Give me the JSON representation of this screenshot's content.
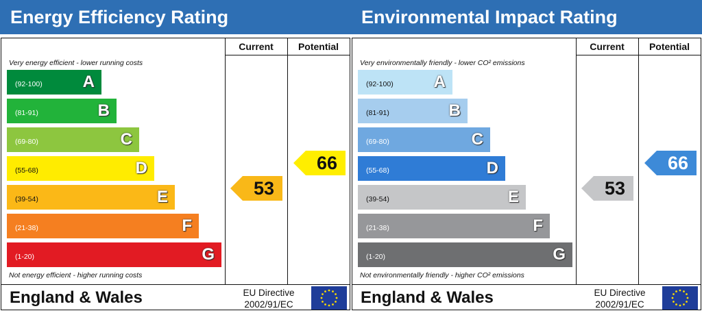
{
  "energy": {
    "title": "Energy Efficiency Rating",
    "col_current": "Current",
    "col_potential": "Potential",
    "top_caption": "Very energy efficient - lower running costs",
    "bottom_caption": "Not energy efficient - higher running costs",
    "bands": [
      {
        "range": "(92-100)",
        "letter": "A",
        "color": "#008a3c"
      },
      {
        "range": "(81-91)",
        "letter": "B",
        "color": "#22b33a"
      },
      {
        "range": "(69-80)",
        "letter": "C",
        "color": "#8dc63f"
      },
      {
        "range": "(55-68)",
        "letter": "D",
        "color": "#ffec00"
      },
      {
        "range": "(39-54)",
        "letter": "E",
        "color": "#fbb817"
      },
      {
        "range": "(21-38)",
        "letter": "F",
        "color": "#f57f20"
      },
      {
        "range": "(1-20)",
        "letter": "G",
        "color": "#e21b23"
      }
    ],
    "current": {
      "value": "53",
      "band": "E",
      "color": "#f9b818"
    },
    "potential": {
      "value": "66",
      "band": "D",
      "color": "#ffee00"
    },
    "country": "England & Wales",
    "directive_line1": "EU Directive",
    "directive_line2": "2002/91/EC"
  },
  "environment": {
    "title": "Environmental Impact Rating",
    "col_current": "Current",
    "col_potential": "Potential",
    "top_caption": "Very environmentally friendly - lower CO² emissions",
    "bottom_caption": "Not environmentally friendly - higher CO² emissions",
    "bands": [
      {
        "range": "(92-100)",
        "letter": "A",
        "color": "#bde3f6"
      },
      {
        "range": "(81-91)",
        "letter": "B",
        "color": "#a6cdee"
      },
      {
        "range": "(69-80)",
        "letter": "C",
        "color": "#6fa8e0"
      },
      {
        "range": "(55-68)",
        "letter": "D",
        "color": "#2f7cd6"
      },
      {
        "range": "(39-54)",
        "letter": "E",
        "color": "#c5c6c8"
      },
      {
        "range": "(21-38)",
        "letter": "F",
        "color": "#96979a"
      },
      {
        "range": "(1-20)",
        "letter": "G",
        "color": "#6e6f71"
      }
    ],
    "current": {
      "value": "53",
      "band": "E",
      "color": "#c5c6c8"
    },
    "potential": {
      "value": "66",
      "band": "D",
      "color": "#3d8ad8"
    },
    "country": "England & Wales",
    "directive_line1": "EU Directive",
    "directive_line2": "2002/91/EC"
  },
  "icons": {
    "flag": "eu-flag-icon"
  }
}
